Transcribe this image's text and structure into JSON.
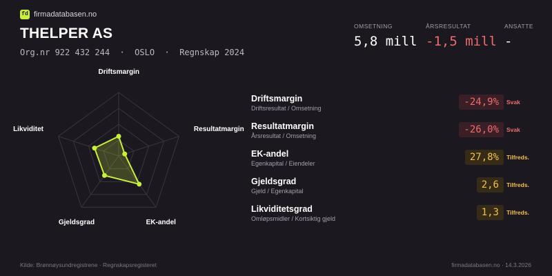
{
  "brand": {
    "logo_text": "fd",
    "name": "firmadatabasen.no"
  },
  "company": {
    "name": "THELPER AS",
    "meta": "Org.nr 922 432 244  ·  OSLO  ·  Regnskap 2024"
  },
  "kpis": {
    "revenue": {
      "label": "OMSETNING",
      "value": "5,8 mill"
    },
    "result": {
      "label": "ÅRSRESULTAT",
      "value": "-1,5 mill"
    },
    "employees": {
      "label": "ANSATTE",
      "value": "-"
    }
  },
  "radar": {
    "axes": [
      "Driftsmargin",
      "Resultatmargin",
      "EK-andel",
      "Gjeldsgrad",
      "Likviditet"
    ],
    "scores": [
      0.31,
      0.1,
      0.55,
      0.38,
      0.4
    ],
    "accent": "#c8f03c"
  },
  "metrics": [
    {
      "name": "Driftsmargin",
      "formula": "Driftsresultat / Omsetning",
      "value": "-24,9%",
      "status": "Svak",
      "level": "weak"
    },
    {
      "name": "Resultatmargin",
      "formula": "Årsresultat / Omsetning",
      "value": "-26,0%",
      "status": "Svak",
      "level": "weak"
    },
    {
      "name": "EK-andel",
      "formula": "Egenkapital / Eiendeler",
      "value": "27,8%",
      "status": "Tilfreds.",
      "level": "ok"
    },
    {
      "name": "Gjeldsgrad",
      "formula": "Gjeld / Egenkapital",
      "value": "2,6",
      "status": "Tilfreds.",
      "level": "ok"
    },
    {
      "name": "Likviditetsgrad",
      "formula": "Omløpsmidler / Kortsiktig gjeld",
      "value": "1,3",
      "status": "Tilfreds.",
      "level": "ok"
    }
  ],
  "colors": {
    "background": "#1c1820",
    "weak": "#f06c6c",
    "ok": "#f2c04a"
  },
  "footer": {
    "source": "Kilde: Brønnøysundregistrene · Regnskapsregisteret",
    "site_date": "firmadatabasen.no · 14.3.2026"
  }
}
